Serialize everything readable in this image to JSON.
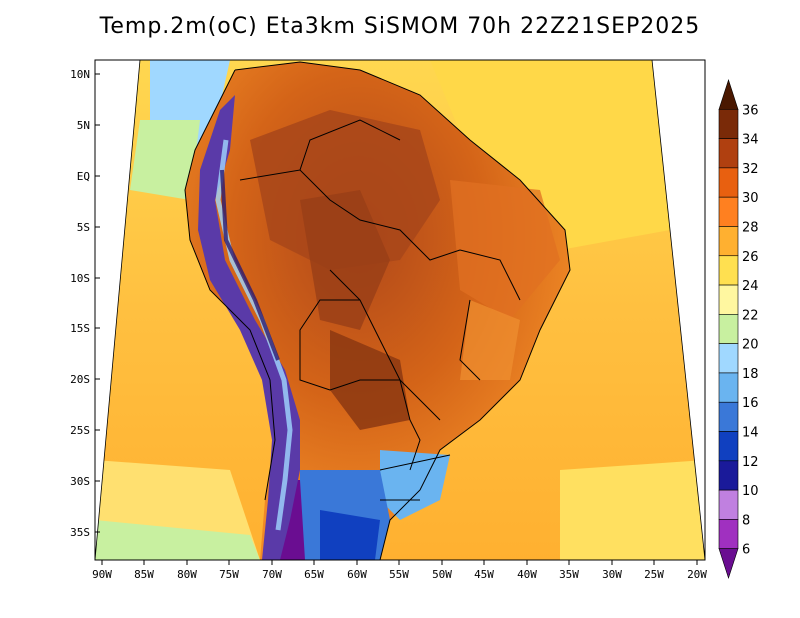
{
  "title": "Temp.2m(oC) Eta3km SiSMOM 70h 22Z21SEP2025",
  "latitude_labels": [
    "10N",
    "5N",
    "EQ",
    "5S",
    "10S",
    "15S",
    "20S",
    "25S",
    "30S",
    "35S"
  ],
  "longitude_labels": [
    "90W",
    "85W",
    "80W",
    "75W",
    "70W",
    "65W",
    "60W",
    "55W",
    "50W",
    "45W",
    "40W",
    "35W",
    "30W",
    "25W",
    "20W"
  ],
  "colorbar": {
    "levels": [
      "6",
      "8",
      "10",
      "12",
      "14",
      "16",
      "18",
      "20",
      "22",
      "24",
      "26",
      "28",
      "30",
      "32",
      "34",
      "36"
    ],
    "colors": [
      "#6a0d91",
      "#a030c0",
      "#c080e0",
      "#1a1a9a",
      "#1040c0",
      "#3a78d8",
      "#6ab4f0",
      "#a0d8ff",
      "#c8f0a0",
      "#fff7a0",
      "#ffe050",
      "#ffb030",
      "#ff8020",
      "#e86010",
      "#b04010",
      "#7a2a08",
      "#4a1800"
    ]
  },
  "palette": {
    "ocean_warm": "#ffb840",
    "ocean_mild": "#ffd84a",
    "ocean_cool": "#fff080",
    "land_hot": "#b8501c",
    "land_warm": "#e8781e",
    "andes_cold": "#3a2a90",
    "south_cool": "#3a78d8"
  }
}
